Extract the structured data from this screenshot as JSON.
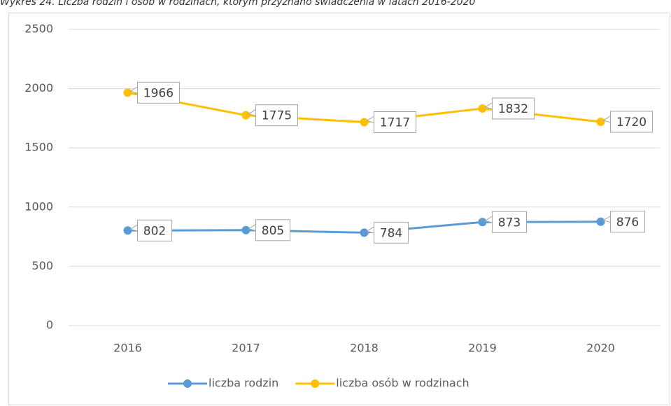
{
  "chart_data": {
    "type": "line",
    "title": "Wykres 24. Liczba rodzin i osób w rodzinach, którym przyznano świadczenia w latach 2016-2020",
    "categories": [
      "2016",
      "2017",
      "2018",
      "2019",
      "2020"
    ],
    "series": [
      {
        "name": "liczba rodzin",
        "color": "#5b9bd5",
        "values": [
          802,
          805,
          784,
          873,
          876
        ]
      },
      {
        "name": "liczba osób w rodzinach",
        "color": "#ffc000",
        "values": [
          1966,
          1775,
          1717,
          1832,
          1720
        ]
      }
    ],
    "ylim": [
      0,
      2500
    ],
    "yticks": [
      0,
      500,
      1000,
      1500,
      2000,
      2500
    ],
    "grid": true,
    "legend": "bottom"
  }
}
